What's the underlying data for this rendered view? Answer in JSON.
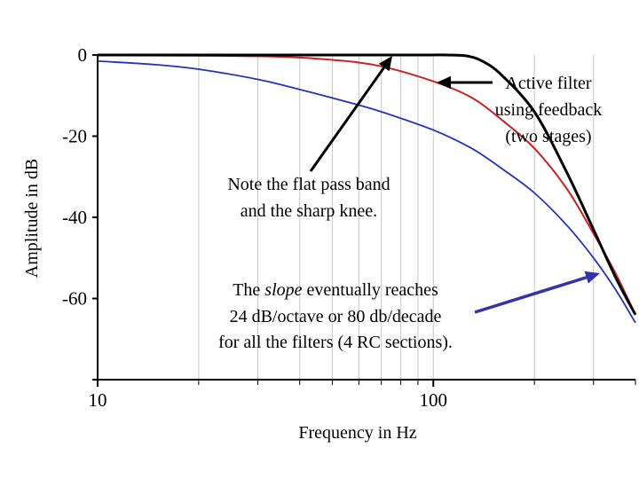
{
  "chart_data": {
    "type": "line",
    "x_scale": "log",
    "xlabel": "Frequency in Hz",
    "ylabel": "Amplitude in dB",
    "xlim": [
      10,
      400
    ],
    "ylim": [
      -80,
      0
    ],
    "x_ticks": [
      {
        "value": 10,
        "label": "10"
      },
      {
        "value": 100,
        "label": "100"
      }
    ],
    "y_ticks": [
      {
        "value": 0,
        "label": "0"
      },
      {
        "value": -20,
        "label": "-20"
      },
      {
        "value": -40,
        "label": "-40"
      },
      {
        "value": -60,
        "label": "-60"
      }
    ],
    "grid": {
      "vertical": true,
      "horizontal": false
    },
    "series": [
      {
        "name": "Active filter using feedback (two stages)",
        "color": "#000000",
        "x": [
          10,
          30,
          60,
          90,
          110,
          125,
          140,
          160,
          200,
          250,
          300,
          350,
          400
        ],
        "y": [
          0,
          0,
          0,
          0,
          0,
          -0.2,
          -1.5,
          -5,
          -14,
          -29,
          -43,
          -55,
          -64
        ]
      },
      {
        "name": "Red filter",
        "color": "#cc2222",
        "x": [
          10,
          30,
          50,
          70,
          100,
          130,
          160,
          200,
          250,
          300,
          350,
          400
        ],
        "y": [
          -0.1,
          -0.3,
          -1.2,
          -2.8,
          -6.5,
          -10.5,
          -16,
          -23,
          -33,
          -44,
          -54,
          -64
        ]
      },
      {
        "name": "Blue filter",
        "color": "#2233bb",
        "x": [
          10,
          15,
          20,
          30,
          40,
          55,
          70,
          100,
          130,
          160,
          200,
          250,
          300,
          350,
          400
        ],
        "y": [
          -1.5,
          -2.4,
          -3.5,
          -6,
          -8.5,
          -11.5,
          -14,
          -18.5,
          -23,
          -28,
          -34,
          -42,
          -50,
          -58,
          -66
        ]
      }
    ],
    "annotations": [
      {
        "id": "active",
        "lines": [
          "Active filter",
          "using feedback",
          "(two stages)"
        ]
      },
      {
        "id": "knee",
        "lines": [
          "Note the flat pass band",
          "and the sharp knee."
        ],
        "color": "#006600"
      },
      {
        "id": "slope",
        "segments": [
          [
            {
              "t": "The "
            },
            {
              "t": "slope",
              "i": true
            },
            {
              "t": " eventually reaches"
            }
          ],
          [
            {
              "t": "24 dB/octave or 80 db/decade"
            }
          ],
          [
            {
              "t": "for all the filters (4 RC sections)."
            }
          ]
        ],
        "color": "#000088"
      }
    ]
  }
}
